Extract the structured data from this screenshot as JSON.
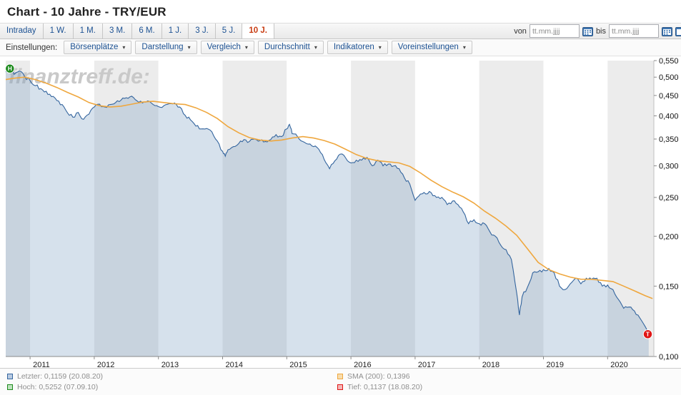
{
  "page": {
    "title": "Chart - 10 Jahre - TRY/EUR"
  },
  "watermark": {
    "text": "finanztreff.de:"
  },
  "toolbar": {
    "from_label": "von",
    "to_label": "bis",
    "date_placeholder": "tt.mm.jjjj",
    "tabs": [
      {
        "id": "intraday",
        "label": "Intraday",
        "active": false
      },
      {
        "id": "1w",
        "label": "1 W.",
        "active": false
      },
      {
        "id": "1m",
        "label": "1 M.",
        "active": false
      },
      {
        "id": "3m",
        "label": "3 M.",
        "active": false
      },
      {
        "id": "6m",
        "label": "6 M.",
        "active": false
      },
      {
        "id": "1j",
        "label": "1 J.",
        "active": false
      },
      {
        "id": "3j",
        "label": "3 J.",
        "active": false
      },
      {
        "id": "5j",
        "label": "5 J.",
        "active": false
      },
      {
        "id": "10j",
        "label": "10 J.",
        "active": true
      }
    ]
  },
  "settings": {
    "label": "Einstellungen:",
    "dropdowns": [
      {
        "id": "boersenplaetze",
        "label": "Börsenplätze"
      },
      {
        "id": "darstellung",
        "label": "Darstellung"
      },
      {
        "id": "vergleich",
        "label": "Vergleich"
      },
      {
        "id": "durchschnitt",
        "label": "Durchschnitt"
      },
      {
        "id": "indikatoren",
        "label": "Indikatoren"
      },
      {
        "id": "voreinstellungen",
        "label": "Voreinstellungen"
      }
    ]
  },
  "legend": {
    "items": [
      {
        "id": "letzter",
        "label": "Letzter: 0,1159 (20.08.20)",
        "color": "#34659e",
        "fill": "#b9cbe2"
      },
      {
        "id": "hoch",
        "label": "Hoch: 0,5252 (07.09.10)",
        "color": "#1d8a1d",
        "fill": "#bfe3bf"
      },
      {
        "id": "sma",
        "label": "SMA (200): 0,1396",
        "color": "#efa73e",
        "fill": "#f7dcae"
      },
      {
        "id": "tief",
        "label": "Tief: 0,1137 (18.08.20)",
        "color": "#e01616",
        "fill": "#f3b8b8"
      }
    ]
  },
  "chart_data": {
    "type": "line",
    "title": "TRY/EUR 10 Jahre",
    "y_scale": "log",
    "ylim": [
      0.1,
      0.55
    ],
    "x_domain": [
      2010.62,
      2020.72
    ],
    "grid": false,
    "legend_position": "bottom",
    "band_colors": {
      "even": "#ececec",
      "odd": "#ffffff"
    },
    "area_fill": "#5c86b4",
    "x_ticks": [
      {
        "value": 2011,
        "label": "2011"
      },
      {
        "value": 2012,
        "label": "2012"
      },
      {
        "value": 2013,
        "label": "2013"
      },
      {
        "value": 2014,
        "label": "2014"
      },
      {
        "value": 2015,
        "label": "2015"
      },
      {
        "value": 2016,
        "label": "2016"
      },
      {
        "value": 2017,
        "label": "2017"
      },
      {
        "value": 2018,
        "label": "2018"
      },
      {
        "value": 2019,
        "label": "2019"
      },
      {
        "value": 2020,
        "label": "2020"
      }
    ],
    "y_ticks": [
      {
        "value": 0.55,
        "label": "0,550"
      },
      {
        "value": 0.5,
        "label": "0,500"
      },
      {
        "value": 0.45,
        "label": "0,450"
      },
      {
        "value": 0.4,
        "label": "0,400"
      },
      {
        "value": 0.35,
        "label": "0,350"
      },
      {
        "value": 0.3,
        "label": "0,300"
      },
      {
        "value": 0.25,
        "label": "0,250"
      },
      {
        "value": 0.2,
        "label": "0,200"
      },
      {
        "value": 0.15,
        "label": "0,150"
      },
      {
        "value": 0.1,
        "label": "0,100"
      }
    ],
    "series": [
      {
        "id": "price",
        "name": "TRY/EUR",
        "color": "#34659e",
        "points": [
          [
            2010.62,
            0.515
          ],
          [
            2010.685,
            0.5252
          ],
          [
            2010.75,
            0.508
          ],
          [
            2010.833,
            0.518
          ],
          [
            2010.917,
            0.501
          ],
          [
            2011.0,
            0.49
          ],
          [
            2011.083,
            0.476
          ],
          [
            2011.167,
            0.468
          ],
          [
            2011.25,
            0.461
          ],
          [
            2011.333,
            0.447
          ],
          [
            2011.417,
            0.437
          ],
          [
            2011.5,
            0.427
          ],
          [
            2011.583,
            0.407
          ],
          [
            2011.667,
            0.397
          ],
          [
            2011.75,
            0.408
          ],
          [
            2011.833,
            0.392
          ],
          [
            2011.917,
            0.404
          ],
          [
            2012.0,
            0.421
          ],
          [
            2012.083,
            0.428
          ],
          [
            2012.167,
            0.421
          ],
          [
            2012.25,
            0.427
          ],
          [
            2012.333,
            0.432
          ],
          [
            2012.417,
            0.438
          ],
          [
            2012.5,
            0.444
          ],
          [
            2012.583,
            0.448
          ],
          [
            2012.667,
            0.436
          ],
          [
            2012.75,
            0.431
          ],
          [
            2012.833,
            0.436
          ],
          [
            2012.917,
            0.427
          ],
          [
            2013.0,
            0.422
          ],
          [
            2013.083,
            0.424
          ],
          [
            2013.167,
            0.429
          ],
          [
            2013.25,
            0.431
          ],
          [
            2013.333,
            0.421
          ],
          [
            2013.417,
            0.401
          ],
          [
            2013.5,
            0.391
          ],
          [
            2013.583,
            0.377
          ],
          [
            2013.667,
            0.371
          ],
          [
            2013.75,
            0.372
          ],
          [
            2013.833,
            0.365
          ],
          [
            2013.917,
            0.346
          ],
          [
            2014.0,
            0.326
          ],
          [
            2014.042,
            0.317
          ],
          [
            2014.083,
            0.329
          ],
          [
            2014.167,
            0.335
          ],
          [
            2014.25,
            0.341
          ],
          [
            2014.333,
            0.349
          ],
          [
            2014.417,
            0.345
          ],
          [
            2014.5,
            0.35
          ],
          [
            2014.583,
            0.347
          ],
          [
            2014.667,
            0.345
          ],
          [
            2014.75,
            0.349
          ],
          [
            2014.833,
            0.359
          ],
          [
            2014.917,
            0.355
          ],
          [
            2015.0,
            0.371
          ],
          [
            2015.042,
            0.381
          ],
          [
            2015.083,
            0.361
          ],
          [
            2015.167,
            0.355
          ],
          [
            2015.25,
            0.345
          ],
          [
            2015.333,
            0.34
          ],
          [
            2015.417,
            0.335
          ],
          [
            2015.5,
            0.33
          ],
          [
            2015.583,
            0.311
          ],
          [
            2015.667,
            0.295
          ],
          [
            2015.75,
            0.309
          ],
          [
            2015.833,
            0.321
          ],
          [
            2015.917,
            0.314
          ],
          [
            2016.0,
            0.305
          ],
          [
            2016.083,
            0.31
          ],
          [
            2016.167,
            0.31
          ],
          [
            2016.25,
            0.315
          ],
          [
            2016.333,
            0.3
          ],
          [
            2016.417,
            0.31
          ],
          [
            2016.5,
            0.3
          ],
          [
            2016.583,
            0.303
          ],
          [
            2016.667,
            0.3
          ],
          [
            2016.75,
            0.295
          ],
          [
            2016.833,
            0.28
          ],
          [
            2016.917,
            0.27
          ],
          [
            2017.0,
            0.246
          ],
          [
            2017.083,
            0.255
          ],
          [
            2017.167,
            0.255
          ],
          [
            2017.25,
            0.257
          ],
          [
            2017.333,
            0.25
          ],
          [
            2017.417,
            0.25
          ],
          [
            2017.5,
            0.24
          ],
          [
            2017.583,
            0.245
          ],
          [
            2017.667,
            0.24
          ],
          [
            2017.75,
            0.23
          ],
          [
            2017.833,
            0.215
          ],
          [
            2017.917,
            0.22
          ],
          [
            2018.0,
            0.215
          ],
          [
            2018.083,
            0.215
          ],
          [
            2018.167,
            0.205
          ],
          [
            2018.25,
            0.2
          ],
          [
            2018.333,
            0.19
          ],
          [
            2018.417,
            0.185
          ],
          [
            2018.5,
            0.175
          ],
          [
            2018.583,
            0.144
          ],
          [
            2018.625,
            0.127
          ],
          [
            2018.667,
            0.141
          ],
          [
            2018.75,
            0.149
          ],
          [
            2018.833,
            0.162
          ],
          [
            2018.917,
            0.163
          ],
          [
            2019.0,
            0.165
          ],
          [
            2019.083,
            0.166
          ],
          [
            2019.167,
            0.162
          ],
          [
            2019.25,
            0.15
          ],
          [
            2019.333,
            0.147
          ],
          [
            2019.417,
            0.152
          ],
          [
            2019.5,
            0.157
          ],
          [
            2019.583,
            0.152
          ],
          [
            2019.667,
            0.157
          ],
          [
            2019.75,
            0.156
          ],
          [
            2019.833,
            0.157
          ],
          [
            2019.917,
            0.15
          ],
          [
            2020.0,
            0.151
          ],
          [
            2020.083,
            0.147
          ],
          [
            2020.167,
            0.139
          ],
          [
            2020.25,
            0.132
          ],
          [
            2020.333,
            0.133
          ],
          [
            2020.417,
            0.13
          ],
          [
            2020.5,
            0.125
          ],
          [
            2020.583,
            0.119
          ],
          [
            2020.625,
            0.1137
          ],
          [
            2020.64,
            0.1159
          ]
        ]
      },
      {
        "id": "sma200",
        "name": "SMA (200)",
        "color": "#efa73e",
        "points": [
          [
            2010.62,
            0.493
          ],
          [
            2010.75,
            0.497
          ],
          [
            2010.917,
            0.5
          ],
          [
            2011.083,
            0.493
          ],
          [
            2011.25,
            0.483
          ],
          [
            2011.417,
            0.471
          ],
          [
            2011.583,
            0.458
          ],
          [
            2011.75,
            0.446
          ],
          [
            2011.917,
            0.432
          ],
          [
            2012.083,
            0.424
          ],
          [
            2012.25,
            0.421
          ],
          [
            2012.417,
            0.423
          ],
          [
            2012.583,
            0.428
          ],
          [
            2012.75,
            0.433
          ],
          [
            2012.917,
            0.435
          ],
          [
            2013.083,
            0.432
          ],
          [
            2013.25,
            0.429
          ],
          [
            2013.417,
            0.427
          ],
          [
            2013.583,
            0.419
          ],
          [
            2013.75,
            0.408
          ],
          [
            2013.917,
            0.394
          ],
          [
            2014.083,
            0.376
          ],
          [
            2014.25,
            0.363
          ],
          [
            2014.417,
            0.353
          ],
          [
            2014.583,
            0.348
          ],
          [
            2014.75,
            0.346
          ],
          [
            2014.917,
            0.348
          ],
          [
            2015.083,
            0.352
          ],
          [
            2015.25,
            0.355
          ],
          [
            2015.417,
            0.352
          ],
          [
            2015.583,
            0.347
          ],
          [
            2015.75,
            0.34
          ],
          [
            2015.917,
            0.33
          ],
          [
            2016.083,
            0.32
          ],
          [
            2016.25,
            0.313
          ],
          [
            2016.417,
            0.309
          ],
          [
            2016.583,
            0.307
          ],
          [
            2016.75,
            0.305
          ],
          [
            2016.917,
            0.299
          ],
          [
            2017.083,
            0.288
          ],
          [
            2017.25,
            0.276
          ],
          [
            2017.417,
            0.266
          ],
          [
            2017.583,
            0.258
          ],
          [
            2017.75,
            0.251
          ],
          [
            2017.917,
            0.242
          ],
          [
            2018.083,
            0.231
          ],
          [
            2018.25,
            0.222
          ],
          [
            2018.417,
            0.212
          ],
          [
            2018.583,
            0.201
          ],
          [
            2018.75,
            0.186
          ],
          [
            2018.917,
            0.172
          ],
          [
            2019.083,
            0.165
          ],
          [
            2019.25,
            0.161
          ],
          [
            2019.417,
            0.158
          ],
          [
            2019.583,
            0.156
          ],
          [
            2019.75,
            0.156
          ],
          [
            2019.917,
            0.155
          ],
          [
            2020.083,
            0.154
          ],
          [
            2020.25,
            0.15
          ],
          [
            2020.417,
            0.146
          ],
          [
            2020.583,
            0.142
          ],
          [
            2020.7,
            0.1396
          ]
        ]
      }
    ],
    "markers": [
      {
        "id": "high",
        "label": "H",
        "color": "#1d8a1d",
        "x": 2010.685,
        "value": 0.5252
      },
      {
        "id": "low",
        "label": "T",
        "color": "#e01616",
        "x": 2020.625,
        "value": 0.1137
      }
    ]
  }
}
